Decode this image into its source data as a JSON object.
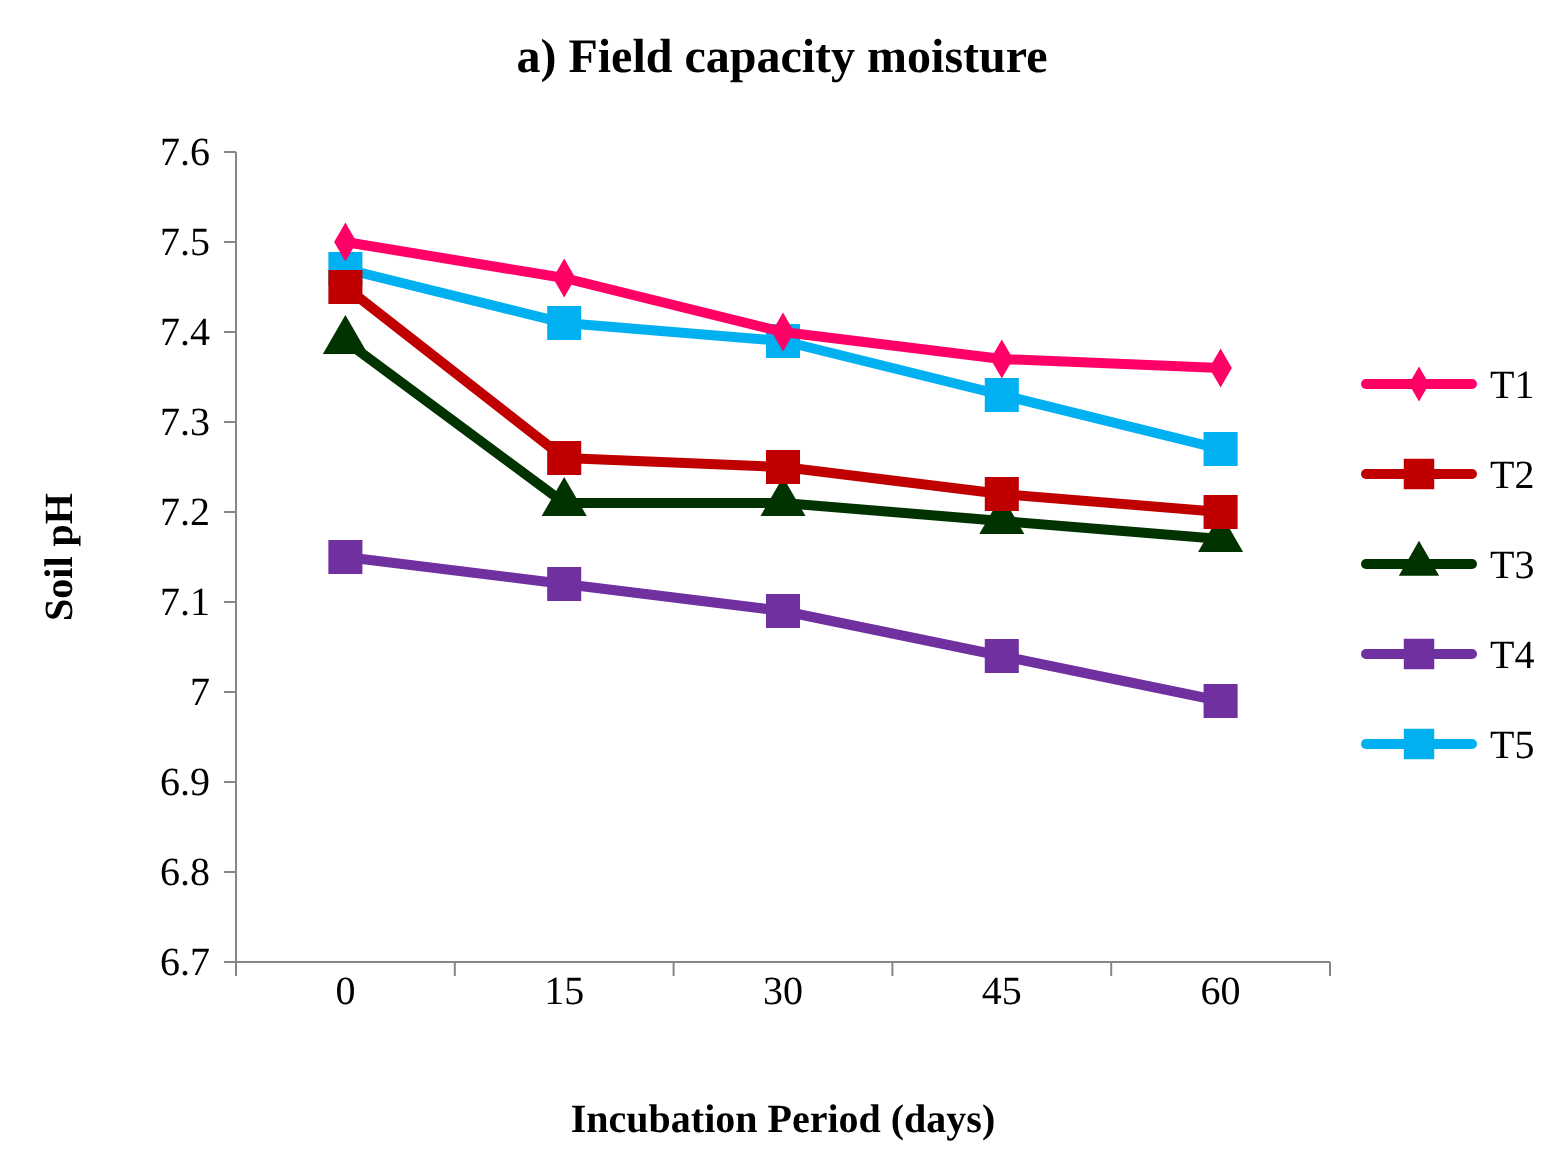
{
  "chart_data": {
    "type": "line",
    "title": "a) Field capacity moisture",
    "xlabel": "Incubation Period (days)",
    "ylabel": "Soil pH",
    "categories": [
      "0",
      "15",
      "30",
      "45",
      "60"
    ],
    "ylim": [
      6.7,
      7.6
    ],
    "yticks": [
      {
        "value": 6.7,
        "label": "6.7"
      },
      {
        "value": 6.8,
        "label": "6.8"
      },
      {
        "value": 6.9,
        "label": "6.9"
      },
      {
        "value": 7,
        "label": "7"
      },
      {
        "value": 7.1,
        "label": "7.1"
      },
      {
        "value": 7.2,
        "label": "7.2"
      },
      {
        "value": 7.3,
        "label": "7.3"
      },
      {
        "value": 7.4,
        "label": "7.4"
      },
      {
        "value": 7.5,
        "label": "7.5"
      },
      {
        "value": 7.6,
        "label": "7.6"
      }
    ],
    "grid": false,
    "legend": "right",
    "line_style": "solid",
    "series": [
      {
        "name": "T1",
        "color": "#ff0066",
        "marker": "diamond",
        "values": [
          7.5,
          7.46,
          7.4,
          7.37,
          7.36
        ]
      },
      {
        "name": "T2",
        "color": "#c00000",
        "marker": "square",
        "values": [
          7.45,
          7.26,
          7.25,
          7.22,
          7.2
        ]
      },
      {
        "name": "T3",
        "color": "#003300",
        "marker": "triangle",
        "values": [
          7.39,
          7.21,
          7.21,
          7.19,
          7.17
        ]
      },
      {
        "name": "T4",
        "color": "#7030a0",
        "marker": "square",
        "values": [
          7.15,
          7.12,
          7.09,
          7.04,
          6.99
        ]
      },
      {
        "name": "T5",
        "color": "#00b0f0",
        "marker": "square",
        "values": [
          7.47,
          7.41,
          7.39,
          7.33,
          7.27
        ]
      }
    ]
  }
}
